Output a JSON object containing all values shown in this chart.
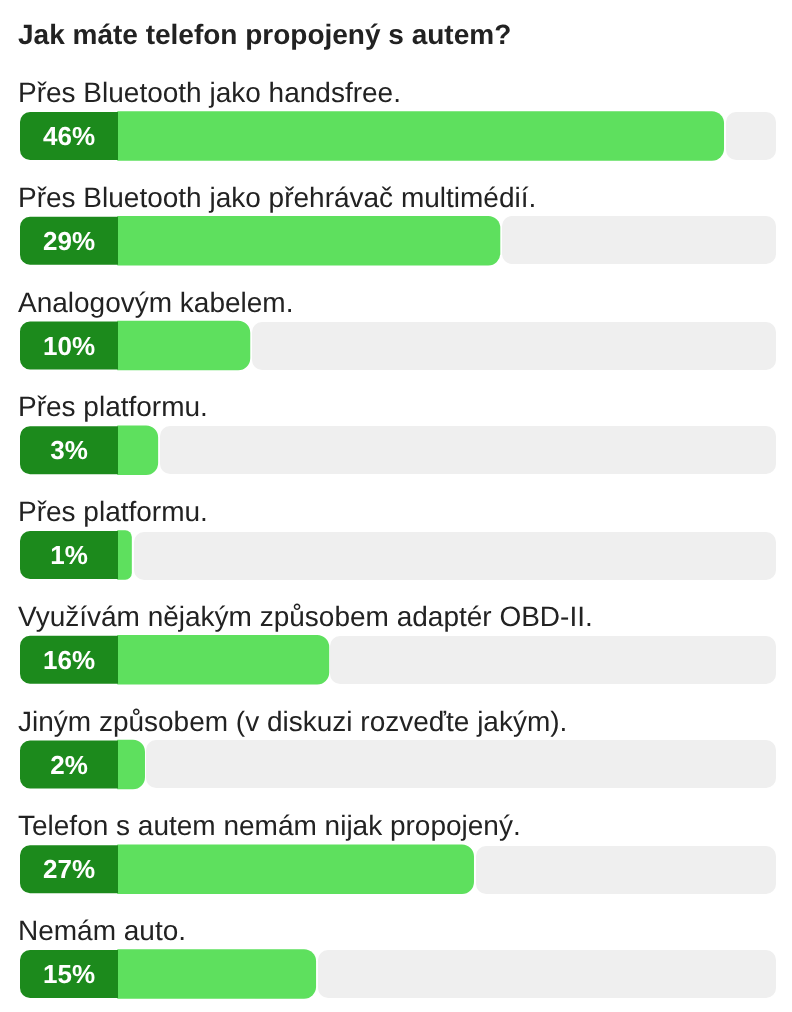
{
  "chart_data": {
    "type": "bar",
    "orientation": "horizontal",
    "title": "Jak máte telefon propojený s autem?",
    "categories": [
      "Přes Bluetooth jako handsfree.",
      "Přes Bluetooth jako přehrávač multimédií.",
      "Analogovým kabelem.",
      "Přes platformu.",
      "Přes platformu.",
      "Využívám nějakým způsobem adaptér OBD-II.",
      "Jiným způsobem (v diskuzi rozveďte jakým).",
      "Telefon s autem nemám nijak propojený.",
      "Nemám auto."
    ],
    "values": [
      46,
      29,
      10,
      3,
      1,
      16,
      2,
      27,
      15
    ],
    "value_labels": [
      "46%",
      "29%",
      "10%",
      "3%",
      "1%",
      "16%",
      "2%",
      "27%",
      "15%"
    ],
    "color": "#5ee05e",
    "tick_labels": false
  }
}
